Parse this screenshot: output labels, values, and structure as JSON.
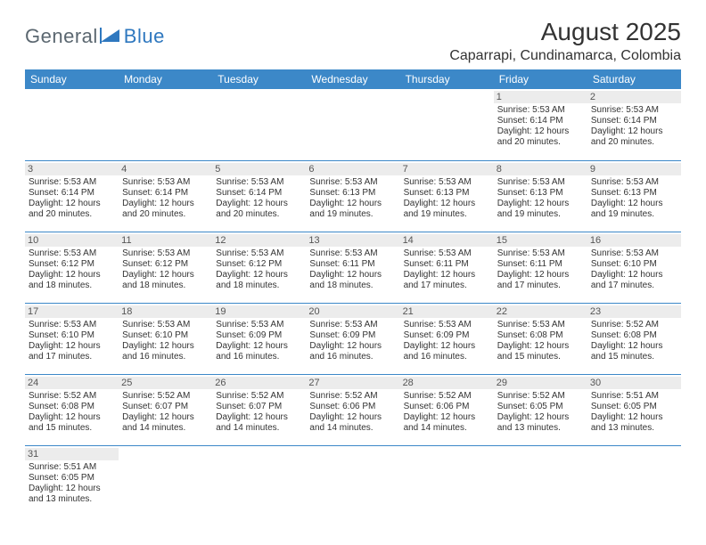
{
  "brand": {
    "part1": "General",
    "part2": "Blue"
  },
  "title": "August 2025",
  "location": "Caparrapi, Cundinamarca, Colombia",
  "colors": {
    "header_bg": "#3c88c8",
    "header_text": "#ffffff",
    "daynum_bg": "#ececec",
    "row_border": "#3c88c8",
    "brand_gray": "#5b6770",
    "brand_blue": "#2f78bf",
    "text": "#333333",
    "background": "#ffffff"
  },
  "dow": [
    "Sunday",
    "Monday",
    "Tuesday",
    "Wednesday",
    "Thursday",
    "Friday",
    "Saturday"
  ],
  "weeks": [
    [
      null,
      null,
      null,
      null,
      null,
      {
        "n": "1",
        "sr": "Sunrise: 5:53 AM",
        "ss": "Sunset: 6:14 PM",
        "d1": "Daylight: 12 hours",
        "d2": "and 20 minutes."
      },
      {
        "n": "2",
        "sr": "Sunrise: 5:53 AM",
        "ss": "Sunset: 6:14 PM",
        "d1": "Daylight: 12 hours",
        "d2": "and 20 minutes."
      }
    ],
    [
      {
        "n": "3",
        "sr": "Sunrise: 5:53 AM",
        "ss": "Sunset: 6:14 PM",
        "d1": "Daylight: 12 hours",
        "d2": "and 20 minutes."
      },
      {
        "n": "4",
        "sr": "Sunrise: 5:53 AM",
        "ss": "Sunset: 6:14 PM",
        "d1": "Daylight: 12 hours",
        "d2": "and 20 minutes."
      },
      {
        "n": "5",
        "sr": "Sunrise: 5:53 AM",
        "ss": "Sunset: 6:14 PM",
        "d1": "Daylight: 12 hours",
        "d2": "and 20 minutes."
      },
      {
        "n": "6",
        "sr": "Sunrise: 5:53 AM",
        "ss": "Sunset: 6:13 PM",
        "d1": "Daylight: 12 hours",
        "d2": "and 19 minutes."
      },
      {
        "n": "7",
        "sr": "Sunrise: 5:53 AM",
        "ss": "Sunset: 6:13 PM",
        "d1": "Daylight: 12 hours",
        "d2": "and 19 minutes."
      },
      {
        "n": "8",
        "sr": "Sunrise: 5:53 AM",
        "ss": "Sunset: 6:13 PM",
        "d1": "Daylight: 12 hours",
        "d2": "and 19 minutes."
      },
      {
        "n": "9",
        "sr": "Sunrise: 5:53 AM",
        "ss": "Sunset: 6:13 PM",
        "d1": "Daylight: 12 hours",
        "d2": "and 19 minutes."
      }
    ],
    [
      {
        "n": "10",
        "sr": "Sunrise: 5:53 AM",
        "ss": "Sunset: 6:12 PM",
        "d1": "Daylight: 12 hours",
        "d2": "and 18 minutes."
      },
      {
        "n": "11",
        "sr": "Sunrise: 5:53 AM",
        "ss": "Sunset: 6:12 PM",
        "d1": "Daylight: 12 hours",
        "d2": "and 18 minutes."
      },
      {
        "n": "12",
        "sr": "Sunrise: 5:53 AM",
        "ss": "Sunset: 6:12 PM",
        "d1": "Daylight: 12 hours",
        "d2": "and 18 minutes."
      },
      {
        "n": "13",
        "sr": "Sunrise: 5:53 AM",
        "ss": "Sunset: 6:11 PM",
        "d1": "Daylight: 12 hours",
        "d2": "and 18 minutes."
      },
      {
        "n": "14",
        "sr": "Sunrise: 5:53 AM",
        "ss": "Sunset: 6:11 PM",
        "d1": "Daylight: 12 hours",
        "d2": "and 17 minutes."
      },
      {
        "n": "15",
        "sr": "Sunrise: 5:53 AM",
        "ss": "Sunset: 6:11 PM",
        "d1": "Daylight: 12 hours",
        "d2": "and 17 minutes."
      },
      {
        "n": "16",
        "sr": "Sunrise: 5:53 AM",
        "ss": "Sunset: 6:10 PM",
        "d1": "Daylight: 12 hours",
        "d2": "and 17 minutes."
      }
    ],
    [
      {
        "n": "17",
        "sr": "Sunrise: 5:53 AM",
        "ss": "Sunset: 6:10 PM",
        "d1": "Daylight: 12 hours",
        "d2": "and 17 minutes."
      },
      {
        "n": "18",
        "sr": "Sunrise: 5:53 AM",
        "ss": "Sunset: 6:10 PM",
        "d1": "Daylight: 12 hours",
        "d2": "and 16 minutes."
      },
      {
        "n": "19",
        "sr": "Sunrise: 5:53 AM",
        "ss": "Sunset: 6:09 PM",
        "d1": "Daylight: 12 hours",
        "d2": "and 16 minutes."
      },
      {
        "n": "20",
        "sr": "Sunrise: 5:53 AM",
        "ss": "Sunset: 6:09 PM",
        "d1": "Daylight: 12 hours",
        "d2": "and 16 minutes."
      },
      {
        "n": "21",
        "sr": "Sunrise: 5:53 AM",
        "ss": "Sunset: 6:09 PM",
        "d1": "Daylight: 12 hours",
        "d2": "and 16 minutes."
      },
      {
        "n": "22",
        "sr": "Sunrise: 5:53 AM",
        "ss": "Sunset: 6:08 PM",
        "d1": "Daylight: 12 hours",
        "d2": "and 15 minutes."
      },
      {
        "n": "23",
        "sr": "Sunrise: 5:52 AM",
        "ss": "Sunset: 6:08 PM",
        "d1": "Daylight: 12 hours",
        "d2": "and 15 minutes."
      }
    ],
    [
      {
        "n": "24",
        "sr": "Sunrise: 5:52 AM",
        "ss": "Sunset: 6:08 PM",
        "d1": "Daylight: 12 hours",
        "d2": "and 15 minutes."
      },
      {
        "n": "25",
        "sr": "Sunrise: 5:52 AM",
        "ss": "Sunset: 6:07 PM",
        "d1": "Daylight: 12 hours",
        "d2": "and 14 minutes."
      },
      {
        "n": "26",
        "sr": "Sunrise: 5:52 AM",
        "ss": "Sunset: 6:07 PM",
        "d1": "Daylight: 12 hours",
        "d2": "and 14 minutes."
      },
      {
        "n": "27",
        "sr": "Sunrise: 5:52 AM",
        "ss": "Sunset: 6:06 PM",
        "d1": "Daylight: 12 hours",
        "d2": "and 14 minutes."
      },
      {
        "n": "28",
        "sr": "Sunrise: 5:52 AM",
        "ss": "Sunset: 6:06 PM",
        "d1": "Daylight: 12 hours",
        "d2": "and 14 minutes."
      },
      {
        "n": "29",
        "sr": "Sunrise: 5:52 AM",
        "ss": "Sunset: 6:05 PM",
        "d1": "Daylight: 12 hours",
        "d2": "and 13 minutes."
      },
      {
        "n": "30",
        "sr": "Sunrise: 5:51 AM",
        "ss": "Sunset: 6:05 PM",
        "d1": "Daylight: 12 hours",
        "d2": "and 13 minutes."
      }
    ],
    [
      {
        "n": "31",
        "sr": "Sunrise: 5:51 AM",
        "ss": "Sunset: 6:05 PM",
        "d1": "Daylight: 12 hours",
        "d2": "and 13 minutes."
      },
      null,
      null,
      null,
      null,
      null,
      null
    ]
  ]
}
